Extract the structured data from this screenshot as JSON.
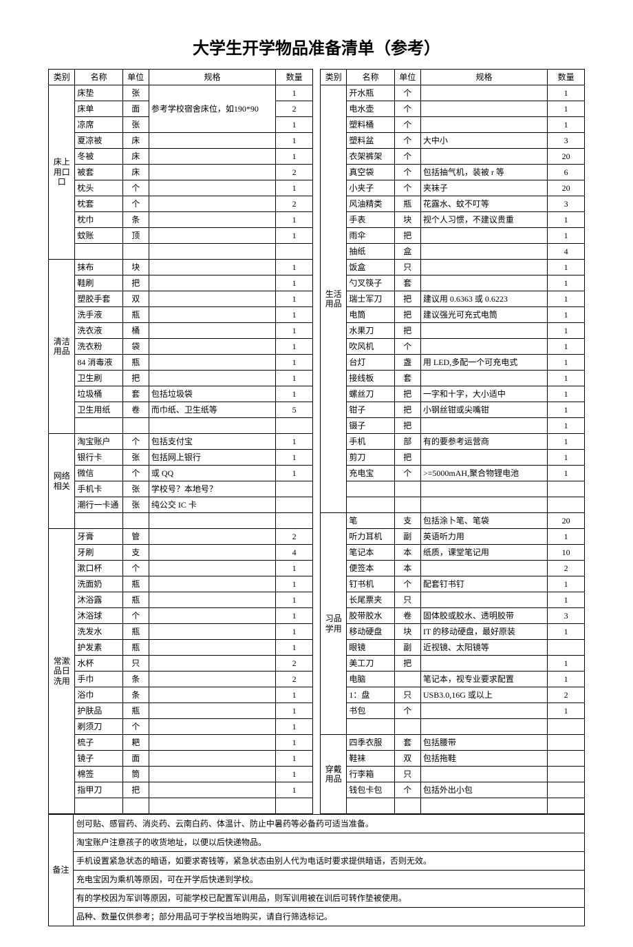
{
  "title": "大学生开学物品准备清单（参考）",
  "headers": {
    "category": "类别",
    "name": "名称",
    "unit": "单位",
    "spec": "规格",
    "qty": "数量"
  },
  "left_sections": [
    {
      "category": "床上用口口",
      "rows": [
        {
          "name": "床垫",
          "unit": "张",
          "spec": "参考学校宿舍床位，如190*90",
          "qty": "1",
          "merge_spec": 3
        },
        {
          "name": "床单",
          "unit": "面",
          "spec": "",
          "qty": "2"
        },
        {
          "name": "凉席",
          "unit": "张",
          "spec": "",
          "qty": "1"
        },
        {
          "name": "夏凉被",
          "unit": "床",
          "spec": "",
          "qty": "1"
        },
        {
          "name": "冬被",
          "unit": "床",
          "spec": "",
          "qty": "1"
        },
        {
          "name": "被套",
          "unit": "床",
          "spec": "",
          "qty": "2"
        },
        {
          "name": "枕头",
          "unit": "个",
          "spec": "",
          "qty": "1"
        },
        {
          "name": "枕套",
          "unit": "个",
          "spec": "",
          "qty": "2"
        },
        {
          "name": "枕巾",
          "unit": "条",
          "spec": "",
          "qty": "1"
        },
        {
          "name": "蚊账",
          "unit": "顶",
          "spec": "",
          "qty": "1"
        },
        {
          "name": "",
          "unit": "",
          "spec": "",
          "qty": ""
        }
      ]
    },
    {
      "category": "清洁用品",
      "rows": [
        {
          "name": "抹布",
          "unit": "块",
          "spec": "",
          "qty": "1"
        },
        {
          "name": "鞋刷",
          "unit": "把",
          "spec": "",
          "qty": "1"
        },
        {
          "name": "塑胶手套",
          "unit": "双",
          "spec": "",
          "qty": "1"
        },
        {
          "name": "洗手液",
          "unit": "瓶",
          "spec": "",
          "qty": "1"
        },
        {
          "name": "洗衣液",
          "unit": "桶",
          "spec": "",
          "qty": "1"
        },
        {
          "name": "洗衣粉",
          "unit": "袋",
          "spec": "",
          "qty": "1"
        },
        {
          "name": "84 消毒液",
          "unit": "瓶",
          "spec": "",
          "qty": "1"
        },
        {
          "name": "卫生刷",
          "unit": "把",
          "spec": "",
          "qty": "1"
        },
        {
          "name": "垃圾桶",
          "unit": "套",
          "spec": "包括垃圾袋",
          "qty": "1"
        },
        {
          "name": "卫生用纸",
          "unit": "卷",
          "spec": "而巾纸、卫生纸等",
          "qty": "5"
        },
        {
          "name": "",
          "unit": "",
          "spec": "",
          "qty": ""
        }
      ]
    },
    {
      "category": "网络相关",
      "rows": [
        {
          "name": "淘宝账户",
          "unit": "个",
          "spec": "包括支付宝",
          "qty": "1"
        },
        {
          "name": "银行卡",
          "unit": "张",
          "spec": "包括网上银行",
          "qty": "1"
        },
        {
          "name": "微信",
          "unit": "个",
          "spec": "或 QQ",
          "qty": "1"
        },
        {
          "name": "手机卡",
          "unit": "张",
          "spec": "学校号？本地号？",
          "qty": ""
        },
        {
          "name": "潮行一卡通",
          "unit": "张",
          "spec": "纯公交 IC 卡",
          "qty": ""
        },
        {
          "name": "",
          "unit": "",
          "spec": "",
          "qty": ""
        }
      ]
    },
    {
      "category": "常漱品日洗用",
      "rows": [
        {
          "name": "牙膏",
          "unit": "管",
          "spec": "",
          "qty": "2"
        },
        {
          "name": "牙刷",
          "unit": "支",
          "spec": "",
          "qty": "4"
        },
        {
          "name": "漱口杯",
          "unit": "个",
          "spec": "",
          "qty": "1"
        },
        {
          "name": "洗面奶",
          "unit": "瓶",
          "spec": "",
          "qty": "1"
        },
        {
          "name": "沐浴露",
          "unit": "瓶",
          "spec": "",
          "qty": "1"
        },
        {
          "name": "沐浴球",
          "unit": "个",
          "spec": "",
          "qty": "1"
        },
        {
          "name": "洗发水",
          "unit": "瓶",
          "spec": "",
          "qty": "1"
        },
        {
          "name": "护发素",
          "unit": "瓶",
          "spec": "",
          "qty": "1"
        },
        {
          "name": "水杯",
          "unit": "只",
          "spec": "",
          "qty": "2"
        },
        {
          "name": "手巾",
          "unit": "条",
          "spec": "",
          "qty": "2"
        },
        {
          "name": "浴巾",
          "unit": "条",
          "spec": "",
          "qty": "1"
        },
        {
          "name": "护肤品",
          "unit": "瓶",
          "spec": "",
          "qty": "1"
        },
        {
          "name": "剃须刀",
          "unit": "个",
          "spec": "",
          "qty": "1"
        },
        {
          "name": "梳子",
          "unit": "耙",
          "spec": "",
          "qty": "1"
        },
        {
          "name": "镜子",
          "unit": "面",
          "spec": "",
          "qty": "1"
        },
        {
          "name": "棉签",
          "unit": "筒",
          "spec": "",
          "qty": "1"
        },
        {
          "name": "指甲刀",
          "unit": "把",
          "spec": "",
          "qty": "1"
        },
        {
          "name": "",
          "unit": "",
          "spec": "",
          "qty": ""
        }
      ]
    }
  ],
  "right_sections": [
    {
      "category": "生活用品",
      "rows": [
        {
          "name": "开水瓶",
          "unit": "个",
          "spec": "",
          "qty": "1"
        },
        {
          "name": "电水壶",
          "unit": "个",
          "spec": "",
          "qty": "1"
        },
        {
          "name": "塑料桶",
          "unit": "个",
          "spec": "",
          "qty": "1"
        },
        {
          "name": "塑料盆",
          "unit": "个",
          "spec": "大中小",
          "qty": "3"
        },
        {
          "name": "衣架裤架",
          "unit": "个",
          "spec": "",
          "qty": "20"
        },
        {
          "name": "真空袋",
          "unit": "个",
          "spec": "包括抽气机，装被 r 等",
          "qty": "6"
        },
        {
          "name": "小夹子",
          "unit": "个",
          "spec": "夹袜子",
          "qty": "20"
        },
        {
          "name": "风油精类",
          "unit": "瓶",
          "spec": "花露水、蚊不叮等",
          "qty": "3"
        },
        {
          "name": "手表",
          "unit": "块",
          "spec": "视个人习惯，不建议贵重",
          "qty": "1"
        },
        {
          "name": "雨伞",
          "unit": "把",
          "spec": "",
          "qty": "1"
        },
        {
          "name": "抽纸",
          "unit": "盒",
          "spec": "",
          "qty": "4"
        },
        {
          "name": "饭盒",
          "unit": "只",
          "spec": "",
          "qty": "1"
        },
        {
          "name": "勺叉筷子",
          "unit": "套",
          "spec": "",
          "qty": "1"
        },
        {
          "name": "瑞士军刀",
          "unit": "把",
          "spec": "建议用 0.6363 或 0.6223",
          "qty": "1"
        },
        {
          "name": "电筒",
          "unit": "把",
          "spec": "建议强光可充式电筒",
          "qty": "1"
        },
        {
          "name": "水果刀",
          "unit": "把",
          "spec": "",
          "qty": "1"
        },
        {
          "name": "吹风机",
          "unit": "个",
          "spec": "",
          "qty": "1"
        },
        {
          "name": "台灯",
          "unit": "盏",
          "spec": "用 LED,多配一个可充电式",
          "qty": "1"
        },
        {
          "name": "接线板",
          "unit": "套",
          "spec": "",
          "qty": "1"
        },
        {
          "name": "螺丝刀",
          "unit": "把",
          "spec": "一字和十字，大小适中",
          "qty": "1"
        },
        {
          "name": "钳子",
          "unit": "把",
          "spec": "小钢丝钳或尖嘴钳",
          "qty": "1"
        },
        {
          "name": "镊子",
          "unit": "把",
          "spec": "",
          "qty": "1"
        },
        {
          "name": "手机",
          "unit": "部",
          "spec": "有的要参考运营商",
          "qty": "1"
        },
        {
          "name": "剪刀",
          "unit": "把",
          "spec": "",
          "qty": "1"
        },
        {
          "name": "充电宝",
          "unit": "个",
          "spec": ">=5000mAH,聚合物锂电池",
          "qty": "1"
        },
        {
          "name": "",
          "unit": "",
          "spec": "",
          "qty": ""
        },
        {
          "name": "",
          "unit": "",
          "spec": "",
          "qty": ""
        }
      ]
    },
    {
      "category": "习品学用",
      "rows": [
        {
          "name": "笔",
          "unit": "支",
          "spec": "包括涂卜笔、笔袋",
          "qty": "20"
        },
        {
          "name": "听力耳机",
          "unit": "副",
          "spec": "英语听力用",
          "qty": "1"
        },
        {
          "name": "笔记本",
          "unit": "本",
          "spec": "纸质，课堂笔记用",
          "qty": "10"
        },
        {
          "name": "便签本",
          "unit": "本",
          "spec": "",
          "qty": "2"
        },
        {
          "name": "钉书机",
          "unit": "个",
          "spec": "配套钉书钉",
          "qty": "1"
        },
        {
          "name": "长尾票夹",
          "unit": "只",
          "spec": "",
          "qty": "1"
        },
        {
          "name": "胶带胶水",
          "unit": "卷",
          "spec": "固体胶或胶水、透明胶带",
          "qty": "3"
        },
        {
          "name": "移动硬盘",
          "unit": "块",
          "spec": "IT 的移动硬盘，最好原装",
          "qty": "1"
        },
        {
          "name": "眼镜",
          "unit": "副",
          "spec": "近视镜、太阳镜等",
          "qty": ""
        },
        {
          "name": "美工刀",
          "unit": "把",
          "spec": "",
          "qty": "1"
        },
        {
          "name": "电脑",
          "unit": "",
          "spec": "笔记本，视专业要求配置",
          "qty": "1"
        },
        {
          "name": "1：盘",
          "unit": "只",
          "spec": "USB3.0,16G 或以上",
          "qty": "2"
        },
        {
          "name": "书包",
          "unit": "个",
          "spec": "",
          "qty": "1"
        },
        {
          "name": "",
          "unit": "",
          "spec": "",
          "qty": ""
        }
      ]
    },
    {
      "category": "穿戴用品",
      "rows": [
        {
          "name": "四季衣服",
          "unit": "套",
          "spec": "包括腰带",
          "qty": ""
        },
        {
          "name": "鞋袜",
          "unit": "双",
          "spec": "包括拖鞋",
          "qty": ""
        },
        {
          "name": "行李箱",
          "unit": "只",
          "spec": "",
          "qty": ""
        },
        {
          "name": "钱包卡包",
          "unit": "个",
          "spec": "包括外出小包",
          "qty": ""
        },
        {
          "name": "",
          "unit": "",
          "spec": "",
          "qty": ""
        }
      ]
    }
  ],
  "notes": {
    "category": "备注",
    "lines": [
      "创可贴、感冒药、消炎药、云南白药、体温计、防止中暑药等必备药可适当准备。",
      "淘宝账户注意孩子的收货地址，以便以后快递物品。",
      "手机设置紧急状态的暗语，如要求寄钱等，紧急状态由别人代为电话时要求提供暗语，否则无效。",
      "充电宝因为乘机等原因，可在开学后快递到学校。",
      "有的学校因为军训等原因，可能学校已配置军训用品，则军训用被在训后可转作垫被使用。",
      "品种、数量仅供参考；部分用品可于学校当地购买，请自行筛选标记。"
    ]
  }
}
